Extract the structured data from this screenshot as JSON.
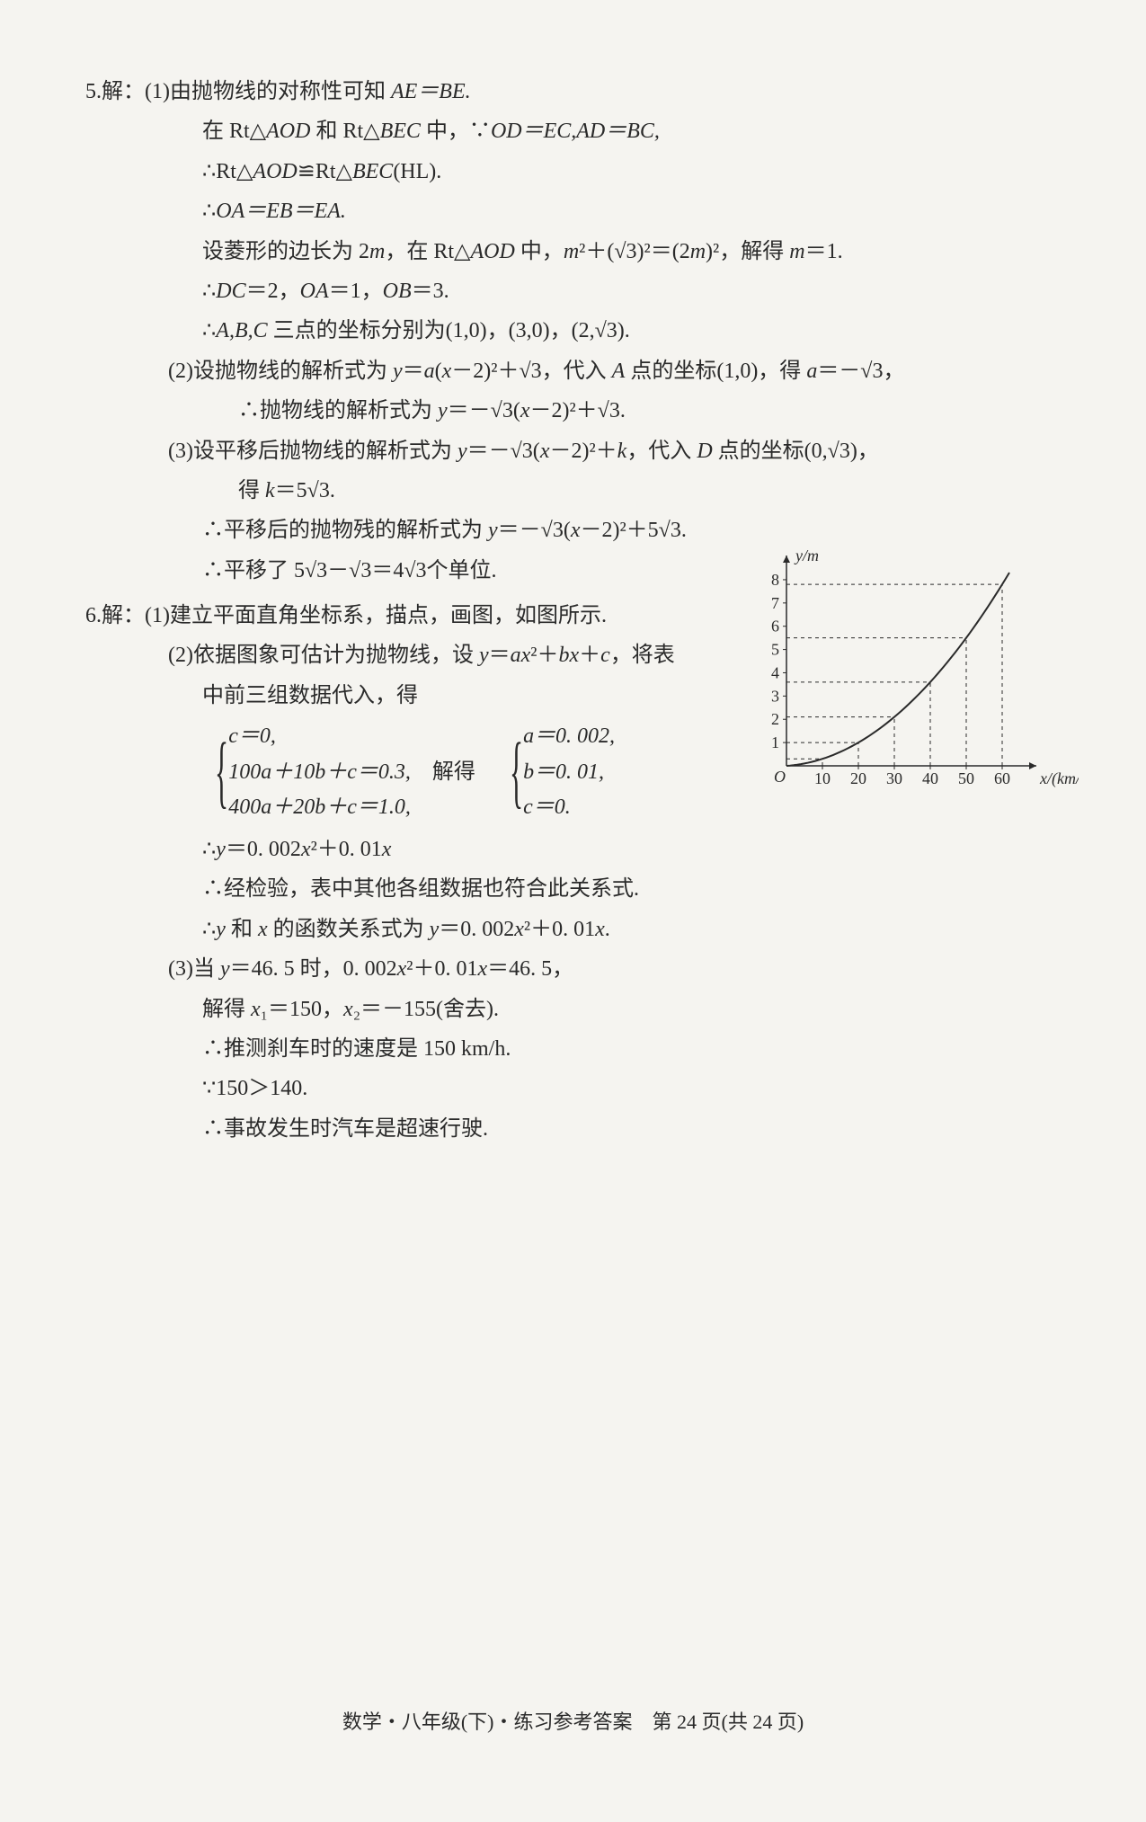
{
  "problem5": {
    "num": "5.",
    "label": "解：",
    "p1_l1": "(1)由抛物线的对称性可知 ",
    "p1_l1_math": "AE＝BE.",
    "p1_l2a": "在 ",
    "p1_l2b": "Rt△",
    "p1_l2c": "AOD",
    "p1_l2d": " 和 ",
    "p1_l2e": "Rt△",
    "p1_l2f": "BEC",
    "p1_l2g": " 中，∵",
    "p1_l2h": "OD＝EC,AD＝BC,",
    "p1_l3a": "∴Rt△",
    "p1_l3b": "AOD",
    "p1_l3c": "≌Rt△",
    "p1_l3d": "BEC",
    "p1_l3e": "(HL).",
    "p1_l4": "∴",
    "p1_l4m": "OA＝EB＝EA.",
    "p1_l5a": "设菱形的边长为 2",
    "p1_l5b": "m",
    "p1_l5c": "，在 Rt△",
    "p1_l5d": "AOD",
    "p1_l5e": " 中，",
    "p1_l5f": "m",
    "p1_l5g": "²＋(√3)²＝(2",
    "p1_l5h": "m",
    "p1_l5i": ")²，解得 ",
    "p1_l5j": "m",
    "p1_l5k": "＝1.",
    "p1_l6a": "∴",
    "p1_l6b": "DC",
    "p1_l6c": "＝2，",
    "p1_l6d": "OA",
    "p1_l6e": "＝1，",
    "p1_l6f": "OB",
    "p1_l6g": "＝3.",
    "p1_l7a": "∴",
    "p1_l7b": "A,B,C",
    "p1_l7c": " 三点的坐标分别为(1,0)，(3,0)，(2,√3).",
    "p2_l1a": "(2)设抛物线的解析式为 ",
    "p2_l1b": "y",
    "p2_l1c": "＝",
    "p2_l1d": "a",
    "p2_l1e": "(",
    "p2_l1f": "x",
    "p2_l1g": "－2)²＋√3，代入 ",
    "p2_l1h": "A",
    "p2_l1i": " 点的坐标(1,0)，得 ",
    "p2_l1j": "a",
    "p2_l1k": "＝－√3，",
    "p2_l2a": "∴抛物线的解析式为 ",
    "p2_l2b": "y",
    "p2_l2c": "＝－√3(",
    "p2_l2d": "x",
    "p2_l2e": "－2)²＋√3.",
    "p3_l1a": "(3)设平移后抛物线的解析式为 ",
    "p3_l1b": "y",
    "p3_l1c": "＝－√3(",
    "p3_l1d": "x",
    "p3_l1e": "－2)²＋",
    "p3_l1f": "k",
    "p3_l1g": "，代入 ",
    "p3_l1h": "D",
    "p3_l1i": " 点的坐标(0,√3)，",
    "p3_l2a": "得 ",
    "p3_l2b": "k",
    "p3_l2c": "＝5√3.",
    "p3_l3a": "∴平移后的抛物残的解析式为 ",
    "p3_l3b": "y",
    "p3_l3c": "＝－√3(",
    "p3_l3d": "x",
    "p3_l3e": "－2)²＋5√3.",
    "p3_l4": "∴平移了 5√3－√3＝4√3个单位."
  },
  "problem6": {
    "num": "6.",
    "label": "解：",
    "p1": "(1)建立平面直角坐标系，描点，画图，如图所示.",
    "p2_l1a": "(2)依据图象可估计为抛物线，设 ",
    "p2_l1b": "y",
    "p2_l1c": "＝",
    "p2_l1d": "ax",
    "p2_l1e": "²＋",
    "p2_l1f": "bx",
    "p2_l1g": "＋",
    "p2_l1h": "c",
    "p2_l1i": "，将表",
    "p2_l2": "中前三组数据代入，得",
    "brace1_l1": "c＝0,",
    "brace1_l2": "100a＋10b＋c＝0.3,",
    "brace1_l3": "400a＋20b＋c＝1.0,",
    "solve": "解得",
    "brace2_l1": "a＝0. 002,",
    "brace2_l2": "b＝0. 01,",
    "brace2_l3": "c＝0.",
    "p2_l4a": "∴",
    "p2_l4b": "y",
    "p2_l4c": "＝0. 002",
    "p2_l4d": "x",
    "p2_l4e": "²＋0. 01",
    "p2_l4f": "x",
    "p2_l5": "∴经检验，表中其他各组数据也符合此关系式.",
    "p2_l6a": "∴",
    "p2_l6b": "y",
    "p2_l6c": " 和 ",
    "p2_l6d": "x",
    "p2_l6e": " 的函数关系式为 ",
    "p2_l6f": "y",
    "p2_l6g": "＝0. 002",
    "p2_l6h": "x",
    "p2_l6i": "²＋0. 01",
    "p2_l6j": "x",
    "p2_l6k": ".",
    "p3_l1a": "(3)当 ",
    "p3_l1b": "y",
    "p3_l1c": "＝46. 5 时，0. 002",
    "p3_l1d": "x",
    "p3_l1e": "²＋0. 01",
    "p3_l1f": "x",
    "p3_l1g": "＝46. 5，",
    "p3_l2a": "解得 ",
    "p3_l2b": "x",
    "p3_l2c": "₁＝150，",
    "p3_l2d": "x",
    "p3_l2e": "₂＝－155(舍去).",
    "p3_l3": "∴推测刹车时的速度是 150 km/h.",
    "p3_l4": "∵150＞140.",
    "p3_l5": "∴事故发生时汽车是超速行驶."
  },
  "footer": "数学・八年级(下)・练习参考答案　第 24 页(共 24 页)",
  "figure": {
    "type": "scatter-curve",
    "x_label": "x/(km/h)",
    "y_label": "y/m",
    "x_ticks": [
      "10",
      "20",
      "30",
      "40",
      "50",
      "60"
    ],
    "y_ticks": [
      "1",
      "2",
      "3",
      "4",
      "5",
      "6",
      "7",
      "8"
    ],
    "x_range": [
      0,
      65
    ],
    "y_range": [
      0,
      8.5
    ],
    "points_x": [
      10,
      20,
      30,
      40,
      50,
      60
    ],
    "points_y": [
      0.3,
      1.0,
      2.1,
      3.6,
      5.5,
      7.8
    ],
    "curve_color": "#2a2a2a",
    "axis_color": "#2a2a2a",
    "grid_dash": "4,4",
    "font_size": 18,
    "bg_color": "#f5f4f0",
    "tick_len": 4
  }
}
